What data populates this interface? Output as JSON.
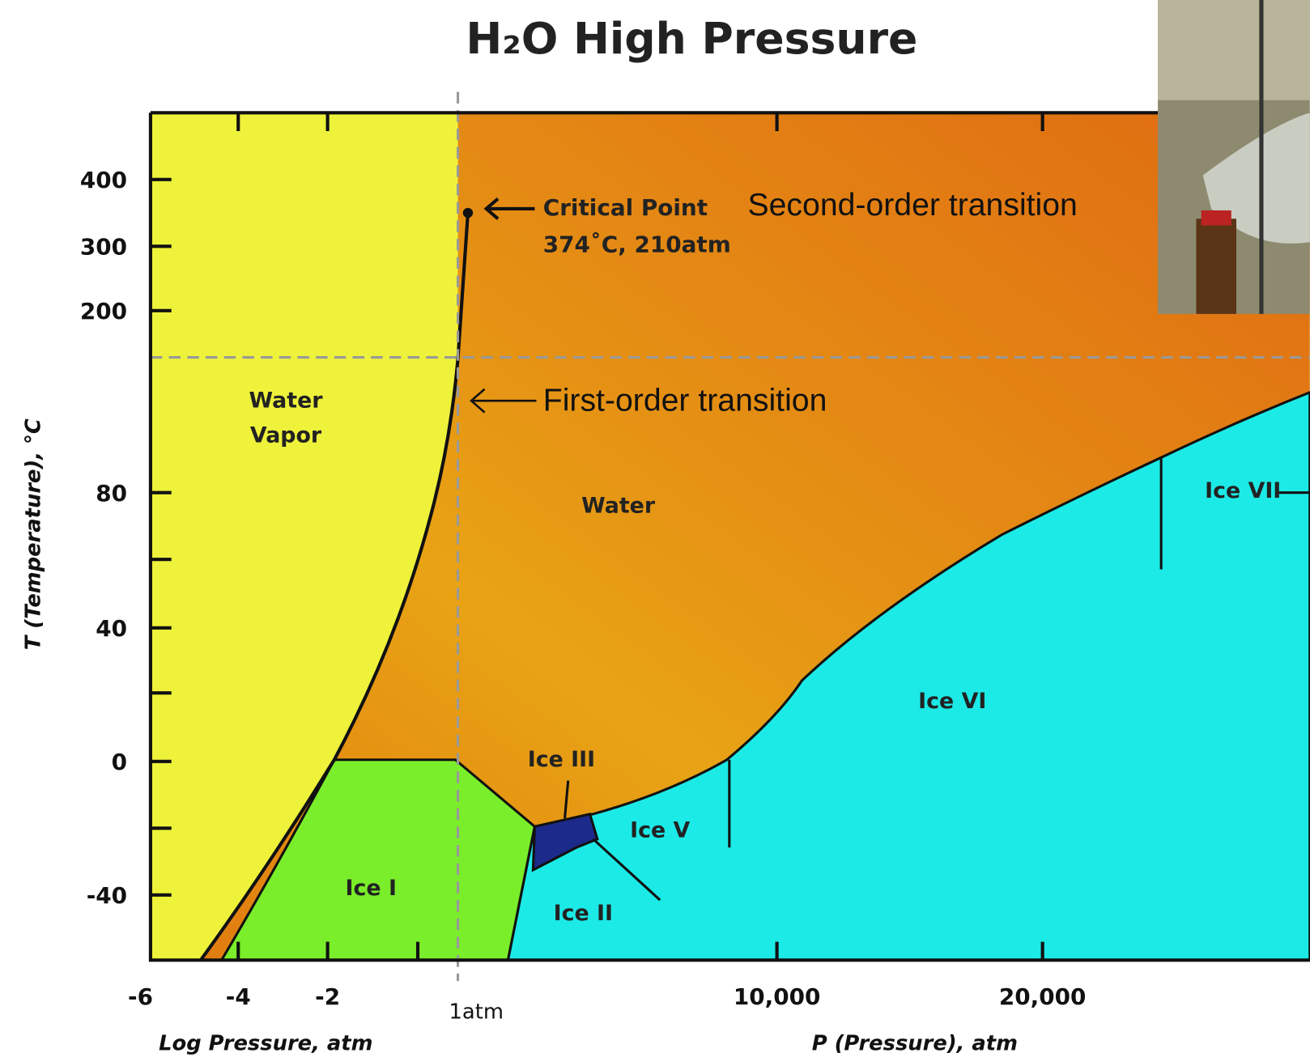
{
  "title": "H₂O High Pressure",
  "y_axis": {
    "label": "T (Temperature), °C",
    "ticks": [
      "400",
      "300",
      "200",
      "80",
      "40",
      "0",
      "-40"
    ]
  },
  "x_axis_left": {
    "label": "Log Pressure, atm",
    "ticks": [
      "-6",
      "-4",
      "-2",
      "1atm"
    ]
  },
  "x_axis_right": {
    "label": "P (Pressure), atm",
    "ticks": [
      "10,000",
      "20,000"
    ]
  },
  "regions": {
    "water_vapor": [
      "Water",
      "Vapor"
    ],
    "water": "Water",
    "ice_1": "Ice I",
    "ice_2": "Ice II",
    "ice_3": "Ice III",
    "ice_5": "Ice V",
    "ice_6": "Ice VI",
    "ice_7": "Ice VII"
  },
  "annotations": {
    "critical_point": "Critical Point",
    "critical_point_values": "374˚C, 210atm",
    "second_order": "Second-order transition",
    "first_order": "First-order transition"
  }
}
